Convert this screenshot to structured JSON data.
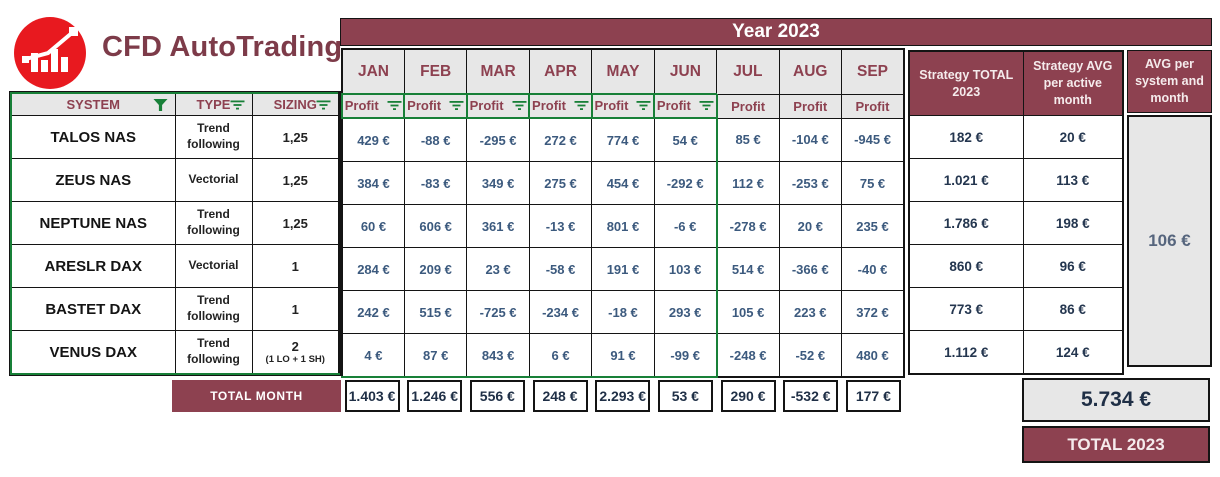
{
  "brand": {
    "title": "CFD AutoTrading"
  },
  "year_header": "Year 2023",
  "months": [
    "JAN",
    "FEB",
    "MAR",
    "APR",
    "MAY",
    "JUN",
    "JUL",
    "AUG",
    "SEP"
  ],
  "profit_label": "Profit",
  "left_headers": [
    {
      "label": "SYSTEM",
      "icon": "filter-funnel-icon"
    },
    {
      "label": "TYPE",
      "icon": "filter-lines-icon"
    },
    {
      "label": "SIZING",
      "icon": "filter-lines-icon"
    }
  ],
  "strategy_headers": {
    "total": "Strategy TOTAL 2023",
    "avg_active": "Strategy AVG per active month",
    "avg_system": "AVG per system and month"
  },
  "rows": [
    {
      "system": "TALOS NAS",
      "type": "Trend following",
      "sizing": "1,25",
      "sizing_sub": "",
      "profits": [
        "429 €",
        "-88 €",
        "-295 €",
        "272 €",
        "774 €",
        "54 €",
        "85 €",
        "-104 €",
        "-945 €"
      ],
      "strategy_total": "182 €",
      "strategy_avg": "20 €"
    },
    {
      "system": "ZEUS NAS",
      "type": "Vectorial",
      "sizing": "1,25",
      "sizing_sub": "",
      "profits": [
        "384 €",
        "-83 €",
        "349 €",
        "275 €",
        "454 €",
        "-292 €",
        "112 €",
        "-253 €",
        "75 €"
      ],
      "strategy_total": "1.021 €",
      "strategy_avg": "113 €"
    },
    {
      "system": "NEPTUNE NAS",
      "type": "Trend following",
      "sizing": "1,25",
      "sizing_sub": "",
      "profits": [
        "60 €",
        "606 €",
        "361 €",
        "-13 €",
        "801 €",
        "-6 €",
        "-278 €",
        "20 €",
        "235 €"
      ],
      "strategy_total": "1.786 €",
      "strategy_avg": "198 €"
    },
    {
      "system": "ARESLR DAX",
      "type": "Vectorial",
      "sizing": "1",
      "sizing_sub": "",
      "profits": [
        "284 €",
        "209 €",
        "23 €",
        "-58 €",
        "191 €",
        "103 €",
        "514 €",
        "-366 €",
        "-40 €"
      ],
      "strategy_total": "860 €",
      "strategy_avg": "96 €"
    },
    {
      "system": "BASTET DAX",
      "type": "Trend following",
      "sizing": "1",
      "sizing_sub": "",
      "profits": [
        "242 €",
        "515 €",
        "-725 €",
        "-234 €",
        "-18 €",
        "293 €",
        "105 €",
        "223 €",
        "372 €"
      ],
      "strategy_total": "773 €",
      "strategy_avg": "86 €"
    },
    {
      "system": "VENUS DAX",
      "type": "Trend following",
      "sizing": "2",
      "sizing_sub": "(1 LO + 1 SH)",
      "profits": [
        "4 €",
        "87 €",
        "843 €",
        "6 €",
        "91 €",
        "-99 €",
        "-248 €",
        "-52 €",
        "480 €"
      ],
      "strategy_total": "1.112 €",
      "strategy_avg": "124 €"
    }
  ],
  "avg_per_system_value": "106 €",
  "totals": {
    "label": "TOTAL MONTH",
    "values": [
      "1.403 €",
      "1.246 €",
      "556 €",
      "248 €",
      "2.293 €",
      "53 €",
      "290 €",
      "-532 €",
      "177 €"
    ]
  },
  "grand_total": {
    "value": "5.734 €",
    "label": "TOTAL 2023"
  },
  "colors": {
    "maroon": "#8d4150",
    "filter_green": "#188038",
    "logo_red": "#e8191f",
    "data_blue": "#3c5a7e"
  }
}
